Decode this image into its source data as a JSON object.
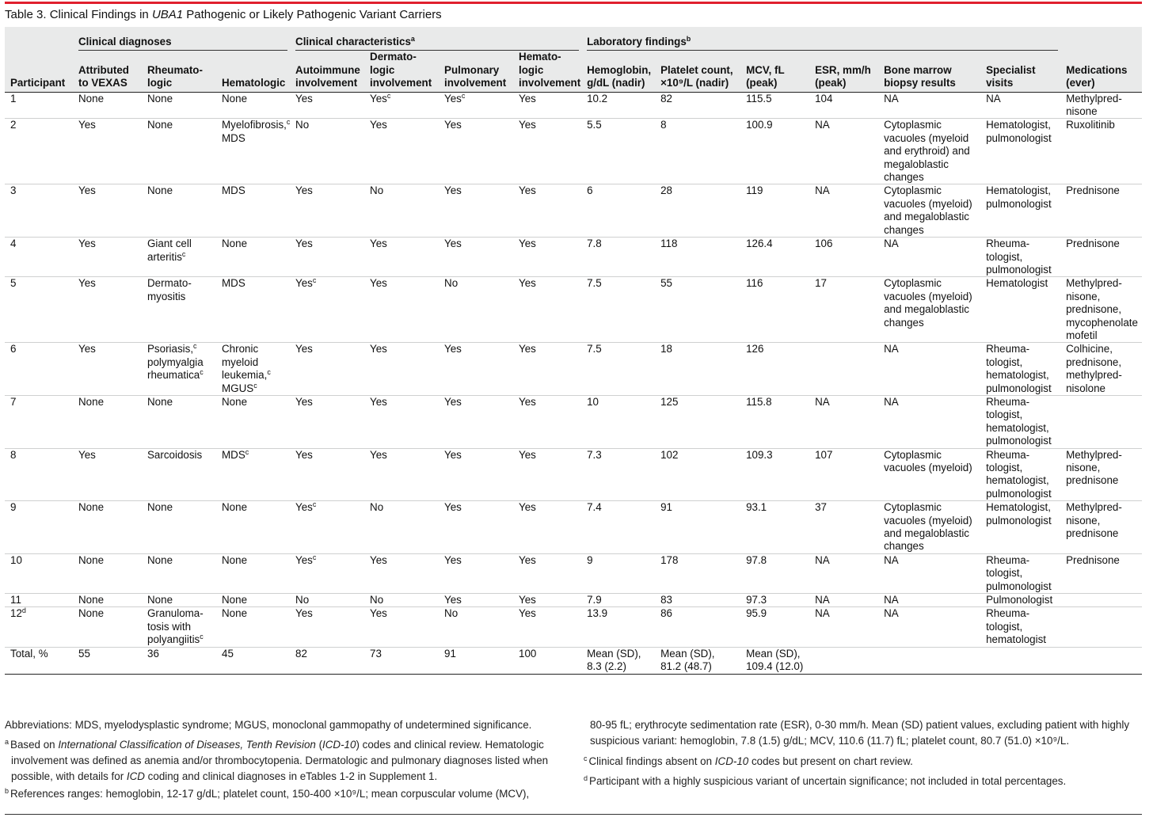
{
  "title": {
    "prefix": "Table 3. Clinical Findings in ",
    "gene": "UBA1",
    "suffix": " Pathogenic or Likely Pathogenic Variant Carriers"
  },
  "groups": {
    "clinical_diagnoses": "Clinical diagnoses",
    "clinical_characteristics": "Clinical characteristics",
    "clinical_characteristics_sup": "a",
    "laboratory_findings": "Laboratory findings",
    "laboratory_findings_sup": "b"
  },
  "columns": [
    "Participant",
    "Attributed to VEXAS",
    "Rheumato-logic",
    "Hematologic",
    "Autoimmune involvement",
    "Dermato-logic involvement",
    "Pulmonary involvement",
    "Hemato-logic involvement",
    "Hemoglobin, g/dL (nadir)",
    "Platelet count, ×10⁹/L (nadir)",
    "MCV, fL (peak)",
    "ESR, mm/h (peak)",
    "Bone marrow biopsy results",
    "Specialist visits",
    "Medications (ever)"
  ],
  "rows": [
    [
      "1",
      "None",
      "None",
      "None",
      "Yes",
      "Yes|c",
      "Yes|c",
      "Yes",
      "10.2",
      "82",
      "115.5",
      "104",
      "NA",
      "NA",
      "Methylpred-nisone"
    ],
    [
      "2",
      "Yes",
      "None",
      "Myelofibrosis,|c| MDS",
      "No",
      "Yes",
      "Yes",
      "Yes",
      "5.5",
      "8",
      "100.9",
      "NA",
      "Cytoplasmic vacuoles (myeloid and erythroid) and megaloblastic changes",
      "Hematologist, pulmonologist",
      "Ruxolitinib"
    ],
    [
      "3",
      "Yes",
      "None",
      "MDS",
      "Yes",
      "No",
      "Yes",
      "Yes",
      "6",
      "28",
      "119",
      "NA",
      "Cytoplasmic vacuoles (myeloid) and megaloblastic changes",
      "Hematologist, pulmonologist",
      "Prednisone"
    ],
    [
      "4",
      "Yes",
      "Giant cell arteritis|c",
      "None",
      "Yes",
      "Yes",
      "Yes",
      "Yes",
      "7.8",
      "118",
      "126.4",
      "106",
      "NA",
      "Rheuma-tologist, pulmonologist",
      "Prednisone"
    ],
    [
      "5",
      "Yes",
      "Dermato-myositis",
      "MDS",
      "Yes|c",
      "Yes",
      "No",
      "Yes",
      "7.5",
      "55",
      "116",
      "17",
      "Cytoplasmic vacuoles (myeloid) and megaloblastic changes",
      "Hematologist",
      "Methylpred-nisone, prednisone, mycophenolate mofetil"
    ],
    [
      "6",
      "Yes",
      "Psoriasis,|c| polymyalgia rheumatica|c",
      "Chronic myeloid leukemia,|c| MGUS|c",
      "Yes",
      "Yes",
      "Yes",
      "Yes",
      "7.5",
      "18",
      "126",
      "",
      "NA",
      "Rheuma-tologist, hematologist, pulmonologist",
      "Colhicine, prednisone, methylpred-nisolone"
    ],
    [
      "7",
      "None",
      "None",
      "None",
      "Yes",
      "Yes",
      "Yes",
      "Yes",
      "10",
      "125",
      "115.8",
      "NA",
      "NA",
      "Rheuma-tologist, hematologist, pulmonologist",
      ""
    ],
    [
      "8",
      "Yes",
      "Sarcoidosis",
      "MDS|c",
      "Yes",
      "Yes",
      "Yes",
      "Yes",
      "7.3",
      "102",
      "109.3",
      "107",
      "Cytoplasmic vacuoles (myeloid)",
      "Rheuma-tologist, hematologist, pulmonologist",
      "Methylpred-nisone, prednisone"
    ],
    [
      "9",
      "None",
      "None",
      "None",
      "Yes|c",
      "No",
      "Yes",
      "Yes",
      "7.4",
      "91",
      "93.1",
      "37",
      "Cytoplasmic vacuoles (myeloid) and megaloblastic changes",
      "Hematologist, pulmonologist",
      "Methylpred-nisone, prednisone"
    ],
    [
      "10",
      "None",
      "None",
      "None",
      "Yes|c",
      "Yes",
      "Yes",
      "Yes",
      "9",
      "178",
      "97.8",
      "NA",
      "NA",
      "Rheuma-tologist, pulmonologist",
      "Prednisone"
    ],
    [
      "11",
      "None",
      "None",
      "None",
      "No",
      "No",
      "Yes",
      "Yes",
      "7.9",
      "83",
      "97.3",
      "NA",
      "NA",
      "Pulmonologist",
      ""
    ],
    [
      "12|d",
      "None",
      "Granuloma-tosis with polyangiitis|c",
      "None",
      "Yes",
      "Yes",
      "No",
      "Yes",
      "13.9",
      "86",
      "95.9",
      "NA",
      "NA",
      "Rheuma-tologist, hematologist",
      ""
    ]
  ],
  "total_row": [
    "Total, %",
    "55",
    "36",
    "45",
    "82",
    "73",
    "91",
    "100",
    "Mean (SD), 8.3 (2.2)",
    "Mean (SD), 81.2 (48.7)",
    "Mean (SD), 109.4 (12.0)",
    "",
    "",
    "",
    ""
  ],
  "footnotes": {
    "abbreviations": "Abbreviations: MDS, myelodysplastic syndrome; MGUS, monoclonal gammopathy of undetermined significance.",
    "a_mark": "a",
    "a_p1": "Based on ",
    "a_i1": "International Classification of Diseases, Tenth Revision",
    "a_p2": " (",
    "a_i2": "ICD-10",
    "a_p3": ") codes and clinical review. Hematologic involvement was defined as anemia and/or thrombocytopenia. Dermatologic and pulmonary diagnoses listed when possible, with details for ",
    "a_i3": "ICD",
    "a_p4": " coding and clinical diagnoses in eTables 1-2 in Supplement 1.",
    "b_mark": "b",
    "b_text": "References ranges: hemoglobin, 12-17 g/dL; platelet count, 150-400 ×10⁹/L; mean corpuscular volume (MCV), 80-95 fL; erythrocyte sedimentation rate (ESR), 0-30 mm/h. Mean (SD) patient values, excluding patient with highly suspicious variant: hemoglobin, 7.8 (1.5) g/dL; MCV, 110.6 (11.7) fL; platelet count, 80.7 (51.0) ×10⁹/L.",
    "b_text_left": "References ranges: hemoglobin, 12-17 g/dL; platelet count, 150-400 ×10⁹/L; mean corpuscular volume (MCV),",
    "b_text_right": "80-95 fL; erythrocyte sedimentation rate (ESR), 0-30 mm/h. Mean (SD) patient values, excluding patient with highly suspicious variant: hemoglobin, 7.8 (1.5) g/dL; MCV, 110.6 (11.7) fL; platelet count, 80.7 (51.0) ×10⁹/L.",
    "c_mark": "c",
    "c_p1": "Clinical findings absent on ",
    "c_i1": "ICD-10",
    "c_p2": " codes but present on chart review.",
    "d_mark": "d",
    "d_text": "Participant with a highly suspicious variant of uncertain significance; not included in total percentages."
  }
}
